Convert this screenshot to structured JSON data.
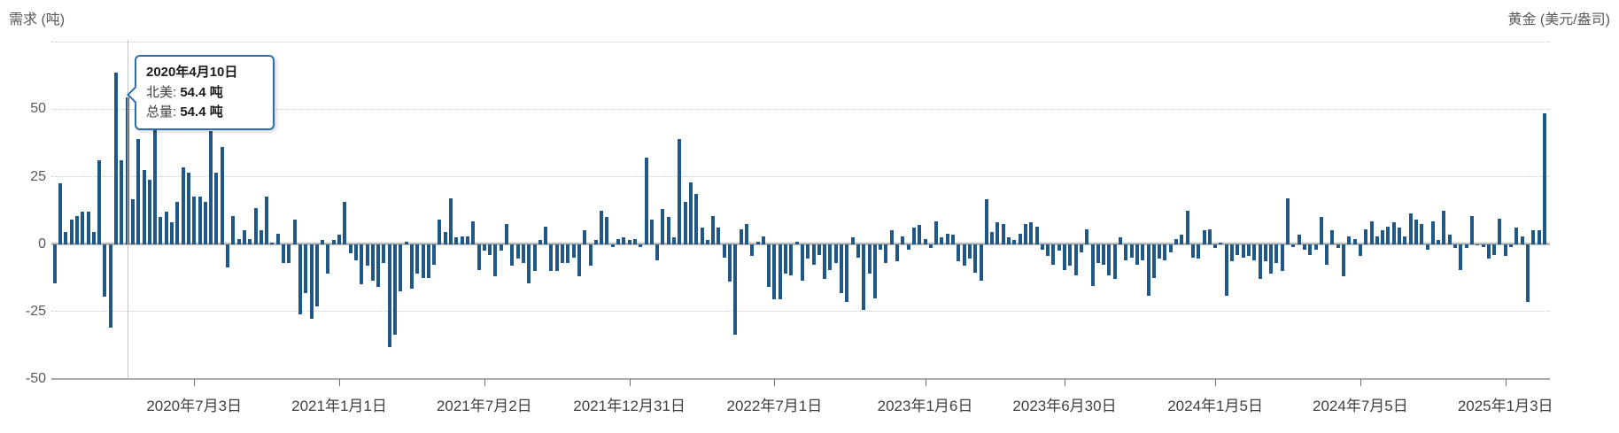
{
  "header": {
    "left_axis_title": "需求 (吨)",
    "right_axis_title": "黄金 (美元/盎司)"
  },
  "tooltip": {
    "title": "2020年4月10日",
    "rows": [
      {
        "label": "北美:",
        "value": "54.4 吨"
      },
      {
        "label": "总量:",
        "value": "54.4 吨"
      }
    ]
  },
  "colors": {
    "bar": "#1f5886",
    "tooltip_border": "#2f6ea8",
    "gridline": "#cbcbcb",
    "zero_line": "#b9b9b9",
    "axis_text": "#595959",
    "x_tick_text": "#3f3f3f"
  },
  "chart_data": {
    "type": "bar",
    "title": "",
    "ylabel": "需求 (吨)",
    "secondary_ylabel": "黄金 (美元/盎司)",
    "unit": "吨",
    "x_start_date": "2020-01-10",
    "x_step": "weekly",
    "ylim": [
      -50,
      75
    ],
    "grid": "dotted-horizontal",
    "y_ticks": [
      50,
      25,
      0,
      -25,
      -50
    ],
    "dotted_levels": [
      75,
      50,
      25,
      -25
    ],
    "x_tick_labels": [
      {
        "index": 25,
        "label": "2020年7月3日"
      },
      {
        "index": 51,
        "label": "2021年1月1日"
      },
      {
        "index": 77,
        "label": "2021年7月2日"
      },
      {
        "index": 103,
        "label": "2021年12月31日"
      },
      {
        "index": 129,
        "label": "2022年7月1日"
      },
      {
        "index": 156,
        "label": "2023年1月6日"
      },
      {
        "index": 181,
        "label": "2023年6月30日"
      },
      {
        "index": 208,
        "label": "2024年1月5日"
      },
      {
        "index": 234,
        "label": "2024年7月5日"
      },
      {
        "index": 260,
        "label": "2025年1月3日"
      }
    ],
    "highlight": {
      "index": 13,
      "date_label": "2020年4月10日",
      "series": "北美",
      "value": 54.4
    },
    "series": [
      {
        "name": "北美",
        "values": [
          -14.5,
          22.5,
          4.5,
          9,
          10.5,
          12,
          12,
          4.5,
          31,
          -19.5,
          -31,
          63.5,
          31,
          54.4,
          16.5,
          39,
          27.5,
          24,
          43,
          10,
          12,
          8,
          15.5,
          28.5,
          26.5,
          17.5,
          17.5,
          15.5,
          42,
          26.5,
          36,
          -8.5,
          10.5,
          2,
          5,
          2,
          13.5,
          5,
          17.5,
          0.5,
          4,
          -7,
          -7,
          9,
          -26,
          -18,
          -27.5,
          -23,
          1.5,
          -11,
          1.5,
          3.5,
          15.5,
          -3.5,
          -6,
          -15,
          -8,
          -13.5,
          -16,
          -7,
          -38,
          -33.5,
          -17.5,
          1,
          -16.5,
          -11,
          -12.5,
          -12.5,
          -7.5,
          9,
          4.5,
          17,
          2.5,
          3,
          3,
          8.5,
          -9.5,
          -2.5,
          -4,
          -12,
          -2.5,
          7.5,
          -8,
          -5.5,
          -7,
          -14.5,
          -10,
          1.5,
          6.5,
          -10,
          -10,
          -7,
          -7,
          -5,
          -12,
          5,
          -8,
          1.5,
          12.5,
          10,
          -1,
          2,
          2.5,
          1.5,
          2,
          -1,
          32,
          9,
          -6,
          13,
          10,
          2.5,
          39,
          15.5,
          23,
          18.5,
          6,
          1.5,
          10.5,
          6,
          -5,
          -14,
          -33.5,
          5.5,
          7.5,
          -4.5,
          1,
          3,
          -16,
          -20.5,
          -20.5,
          -11,
          -11.5,
          1,
          -13.5,
          -5.5,
          -7.5,
          -4,
          -13,
          -9.5,
          -7,
          -18,
          -21.5,
          2.5,
          -5,
          -24.5,
          -11,
          -20,
          -2,
          -7,
          5,
          -6.5,
          3,
          -2,
          6,
          7,
          2,
          -1.5,
          8.5,
          2.5,
          4,
          3.5,
          -6.5,
          -8,
          -5.5,
          -10.5,
          -13.5,
          16.5,
          4.5,
          8,
          7.5,
          2.5,
          1.5,
          4,
          7.5,
          8,
          6.5,
          -2,
          -4.5,
          -7.5,
          -2.5,
          -9.5,
          -8,
          -11.5,
          -3,
          5.5,
          -15.5,
          -7,
          -7.5,
          -11.5,
          -13,
          2.5,
          -6,
          -5,
          -7.5,
          -6,
          -19,
          -12.5,
          -5.5,
          -6,
          -3,
          2,
          3.5,
          12.5,
          -5,
          -5.5,
          5,
          5.5,
          -1.5,
          0.5,
          -19,
          -6.5,
          -4,
          -5,
          -4.5,
          -6,
          -13,
          -6.5,
          -11,
          -7,
          -10,
          17,
          -1,
          3.5,
          -2,
          -4,
          -2,
          10,
          -7.5,
          5,
          -1.5,
          -12,
          3,
          2,
          -4.5,
          5.5,
          8.5,
          3,
          5,
          6.5,
          8,
          6,
          3,
          11.5,
          9,
          7.5,
          -2,
          8.5,
          1.5,
          12.5,
          3.5,
          -1.5,
          -9.5,
          -1.5,
          10.5,
          -0.5,
          -1,
          -5.5,
          -4,
          9.5,
          -4.5,
          -1,
          6,
          3,
          -21.5,
          5,
          5,
          48.5
        ]
      }
    ]
  }
}
